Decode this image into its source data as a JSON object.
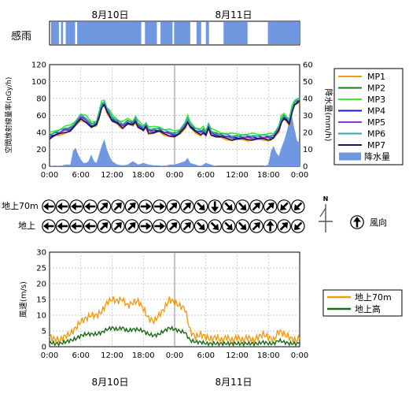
{
  "dates": [
    "8月10日",
    "8月11日"
  ],
  "rain_sense": {
    "label": "感雨",
    "color": "#6f98e0",
    "hours": 48,
    "intervals": [
      [
        0.3,
        1.8
      ],
      [
        2.2,
        2.6
      ],
      [
        3.1,
        4.9
      ],
      [
        5.3,
        17.6
      ],
      [
        18.3,
        20.6
      ],
      [
        21.3,
        23.6
      ],
      [
        23.9,
        27.0
      ],
      [
        28.2,
        29.1
      ],
      [
        30.0,
        30.6
      ],
      [
        33.4,
        38.0
      ],
      [
        41.9,
        48.0
      ]
    ]
  },
  "time_ticks": [
    "0:00",
    "6:00",
    "12:00",
    "18:00",
    "0:00",
    "6:00",
    "12:00",
    "18:00",
    "0:00"
  ],
  "wind_dir": {
    "rows": [
      "地上70m",
      "地上"
    ],
    "legend_label": "風向",
    "north_label": "N",
    "dirs_70m": [
      "W",
      "W",
      "W",
      "W",
      "NE",
      "NE",
      "NE",
      "E",
      "E",
      "NE",
      "NE",
      "SE",
      "S",
      "SE",
      "SE",
      "NE",
      "NE",
      "SW",
      "SW"
    ],
    "dirs_ground": [
      "W",
      "W",
      "W",
      "W",
      "NE",
      "NE",
      "NE",
      "E",
      "E",
      "NE",
      "NE",
      "SE",
      "SE",
      "SE",
      "SE",
      "NE",
      "N",
      "NE",
      "SW"
    ]
  },
  "chart_data": [
    {
      "type": "line",
      "id": "dose",
      "ylabel": "空間放射線量率(nGy/h)",
      "ylim": [
        0,
        120
      ],
      "yticks": [
        0,
        20,
        40,
        60,
        80,
        100,
        120
      ],
      "xlim_hours": [
        0,
        48
      ],
      "y2label": "降水量(mm/h)",
      "y2lim": [
        0,
        60
      ],
      "y2ticks": [
        0,
        10,
        20,
        30,
        40,
        50,
        60
      ],
      "series": [
        {
          "name": "MP1",
          "color": "#f39c12",
          "offset": -3
        },
        {
          "name": "MP2",
          "color": "#1a7a1a",
          "offset": 1
        },
        {
          "name": "MP3",
          "color": "#33ee33",
          "offset": 4
        },
        {
          "name": "MP4",
          "color": "#1a1acc",
          "offset": 0
        },
        {
          "name": "MP5",
          "color": "#9933cc",
          "offset": -1
        },
        {
          "name": "MP6",
          "color": "#33aaaa",
          "offset": 2
        },
        {
          "name": "MP7",
          "color": "#151560",
          "offset": -2
        }
      ],
      "base_curve": {
        "x": [
          0,
          1,
          2,
          3,
          4,
          5,
          6,
          7,
          8,
          9,
          9.5,
          10,
          10.5,
          11,
          11.5,
          12,
          13,
          13.5,
          14,
          15,
          16,
          16.5,
          17,
          18,
          18.5,
          19,
          20,
          21,
          22,
          23,
          24,
          25,
          26,
          26.5,
          27,
          28,
          29,
          29.5,
          30,
          30.5,
          31,
          32,
          33,
          34,
          35,
          36,
          37,
          38,
          39,
          40,
          41,
          42,
          42.5,
          43,
          44,
          44.5,
          45,
          45.5,
          46,
          46.5,
          47,
          48
        ],
        "y": [
          35,
          38,
          40,
          43,
          44,
          50,
          58,
          55,
          48,
          50,
          60,
          72,
          74,
          66,
          62,
          56,
          52,
          50,
          48,
          52,
          50,
          55,
          49,
          44,
          48,
          42,
          42,
          43,
          40,
          39,
          37,
          40,
          48,
          55,
          48,
          42,
          40,
          42,
          38,
          47,
          40,
          37,
          36,
          35,
          34,
          34,
          34,
          34,
          34,
          34,
          34,
          34,
          34,
          35,
          44,
          55,
          58,
          55,
          52,
          66,
          74,
          78
        ]
      },
      "precip": {
        "name": "降水量",
        "color": "#6f98e0",
        "x": [
          0,
          1,
          2,
          3,
          4,
          4.5,
          5,
          5.5,
          6,
          6.5,
          7,
          7.5,
          8,
          8.5,
          9,
          9.5,
          10,
          10.5,
          11,
          11.5,
          12,
          13,
          14,
          15,
          16,
          17,
          18,
          19,
          20,
          21,
          22,
          23,
          24,
          25,
          26,
          26.5,
          27,
          28,
          29,
          29.5,
          30,
          31,
          32,
          33,
          34,
          35,
          36,
          37,
          38,
          39,
          40,
          41,
          42,
          42.5,
          43,
          43.5,
          44,
          44.5,
          45,
          45.5,
          46,
          46.5,
          47,
          47.5,
          48
        ],
        "y": [
          0,
          0.5,
          0,
          1,
          1,
          9,
          11,
          7,
          4,
          2,
          2,
          3,
          7,
          3,
          2,
          7,
          12,
          16,
          10,
          6,
          3,
          1,
          0.5,
          1,
          3,
          1,
          2,
          1,
          0.5,
          0.5,
          0,
          1,
          1,
          2,
          3,
          5,
          2,
          1,
          0,
          1,
          2,
          1,
          0,
          0,
          0,
          0,
          0,
          0,
          0,
          0,
          0,
          0,
          1,
          9,
          12,
          8,
          6,
          11,
          15,
          20,
          27,
          30,
          22,
          15,
          14
        ]
      }
    },
    {
      "type": "line",
      "id": "wind_speed",
      "ylabel": "風速(m/s)",
      "ylim": [
        0,
        30
      ],
      "yticks": [
        0,
        5,
        10,
        15,
        20,
        25,
        30
      ],
      "xlim_hours": [
        0,
        48
      ],
      "series": [
        {
          "name": "地上70m",
          "color": "#f39c12",
          "x": [
            0,
            1,
            2,
            3,
            4,
            5,
            6,
            7,
            8,
            9,
            10,
            11,
            12,
            13,
            14,
            15,
            16,
            17,
            18,
            19,
            20,
            21,
            22,
            23,
            24,
            25,
            26,
            27,
            28,
            29,
            30,
            31,
            32,
            33,
            34,
            35,
            36,
            37,
            38,
            39,
            40,
            41,
            42,
            43,
            44,
            45,
            46,
            47,
            48
          ],
          "y": [
            3,
            2.5,
            2,
            3.5,
            4,
            6,
            8,
            9,
            10,
            10,
            11,
            14,
            15,
            14.5,
            15,
            13,
            14,
            14.5,
            12,
            9,
            8,
            10,
            12,
            15,
            14,
            13,
            12,
            5,
            3,
            4,
            3,
            2.5,
            3,
            2,
            3,
            2,
            3,
            2,
            3,
            2,
            3,
            4,
            3,
            2,
            5,
            4,
            3,
            2,
            2.5
          ]
        },
        {
          "name": "地上高",
          "color": "#1a6a1a",
          "x": [
            0,
            1,
            2,
            3,
            4,
            5,
            6,
            7,
            8,
            9,
            10,
            11,
            12,
            13,
            14,
            15,
            16,
            17,
            18,
            19,
            20,
            21,
            22,
            23,
            24,
            25,
            26,
            27,
            28,
            29,
            30,
            31,
            32,
            33,
            34,
            35,
            36,
            37,
            38,
            39,
            40,
            41,
            42,
            43,
            44,
            45,
            46,
            47,
            48
          ],
          "y": [
            1.5,
            1,
            1,
            1.5,
            2,
            2.5,
            3.5,
            4,
            4,
            4,
            4.5,
            5.5,
            6,
            5.5,
            6,
            5,
            5.5,
            5.5,
            5,
            4,
            3.5,
            4,
            5,
            6,
            5.5,
            5,
            4.5,
            2,
            1.5,
            1.5,
            1,
            1,
            1,
            1,
            1,
            1,
            1,
            1,
            1,
            1,
            1,
            1.5,
            1,
            1,
            2,
            1.5,
            1,
            1,
            1
          ]
        }
      ]
    }
  ]
}
